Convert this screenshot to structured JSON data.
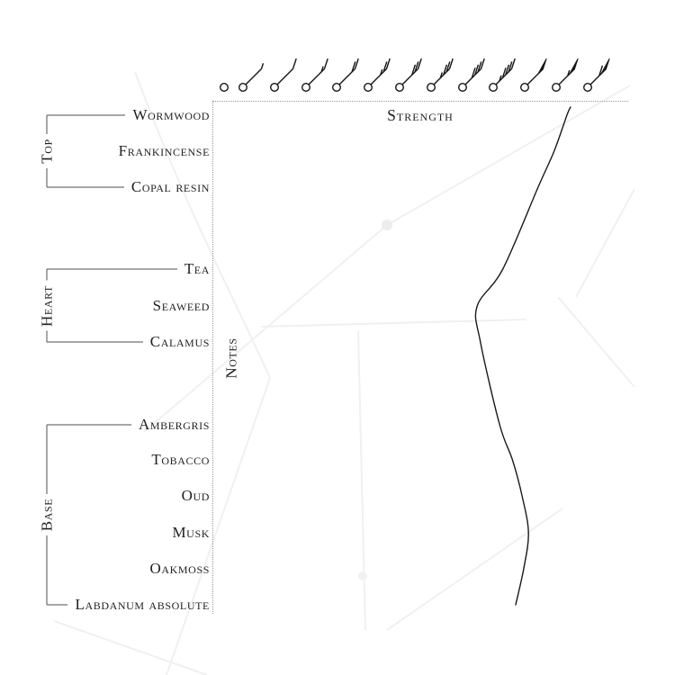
{
  "axes": {
    "x_label": "Strength",
    "y_label": "Notes"
  },
  "note_groups": [
    {
      "label": "Top",
      "notes": [
        "Wormwood",
        "Frankincense",
        "Copal resin"
      ]
    },
    {
      "label": "Heart",
      "notes": [
        "Tea",
        "Seaweed",
        "Calamus"
      ]
    },
    {
      "label": "Base",
      "notes": [
        "Ambergris",
        "Tobacco",
        "Oud",
        "Musk",
        "Oakmoss",
        "Labdanum absolute"
      ]
    }
  ],
  "strength_axis": {
    "unit": "wind-barb-symbols",
    "symbols": [
      {
        "name": "calm-circle",
        "pennants": 0,
        "fulls": 0,
        "halves": 0
      },
      {
        "name": "half-barb",
        "pennants": 0,
        "fulls": 0,
        "halves": 1
      },
      {
        "name": "one-barb",
        "pennants": 0,
        "fulls": 1,
        "halves": 0
      },
      {
        "name": "one-and-half-barb",
        "pennants": 0,
        "fulls": 1,
        "halves": 1
      },
      {
        "name": "two-barbs",
        "pennants": 0,
        "fulls": 2,
        "halves": 0
      },
      {
        "name": "two-and-half-barbs",
        "pennants": 0,
        "fulls": 2,
        "halves": 1
      },
      {
        "name": "three-barbs",
        "pennants": 0,
        "fulls": 3,
        "halves": 0
      },
      {
        "name": "three-and-half-barbs",
        "pennants": 0,
        "fulls": 3,
        "halves": 1
      },
      {
        "name": "four-barbs",
        "pennants": 0,
        "fulls": 4,
        "halves": 0
      },
      {
        "name": "four-and-half-barbs",
        "pennants": 0,
        "fulls": 4,
        "halves": 1
      },
      {
        "name": "pennant",
        "pennants": 1,
        "fulls": 0,
        "halves": 0
      },
      {
        "name": "pennant-half-barb",
        "pennants": 1,
        "fulls": 0,
        "halves": 1
      },
      {
        "name": "pennant-full-barb",
        "pennants": 1,
        "fulls": 1,
        "halves": 0
      }
    ]
  },
  "chart_data": {
    "type": "line",
    "title": "",
    "xlabel": "Strength",
    "ylabel": "Notes",
    "x_ticks": "13 wind-barb strength symbols, calm circle up to pennant-plus-full-barb",
    "xlim": [
      0,
      12
    ],
    "grid": "off",
    "legend": "none",
    "categories": [
      "Wormwood",
      "Frankincense",
      "Copal resin",
      "Tea",
      "Seaweed",
      "Calamus",
      "Ambergris",
      "Tobacco",
      "Oud",
      "Musk",
      "Oakmoss",
      "Labdanum absolute"
    ],
    "values": [
      10.7,
      10.3,
      9.8,
      8.7,
      7.9,
      8.0,
      8.6,
      9.0,
      9.3,
      9.5,
      9.35,
      9.1
    ]
  },
  "colors": {
    "ink": "#1f1f1f",
    "curve": "#1a1a1a",
    "bracket": "#4d4d4d",
    "dotted_border": "#9a9a9a",
    "background_sketch": "#efefef"
  }
}
